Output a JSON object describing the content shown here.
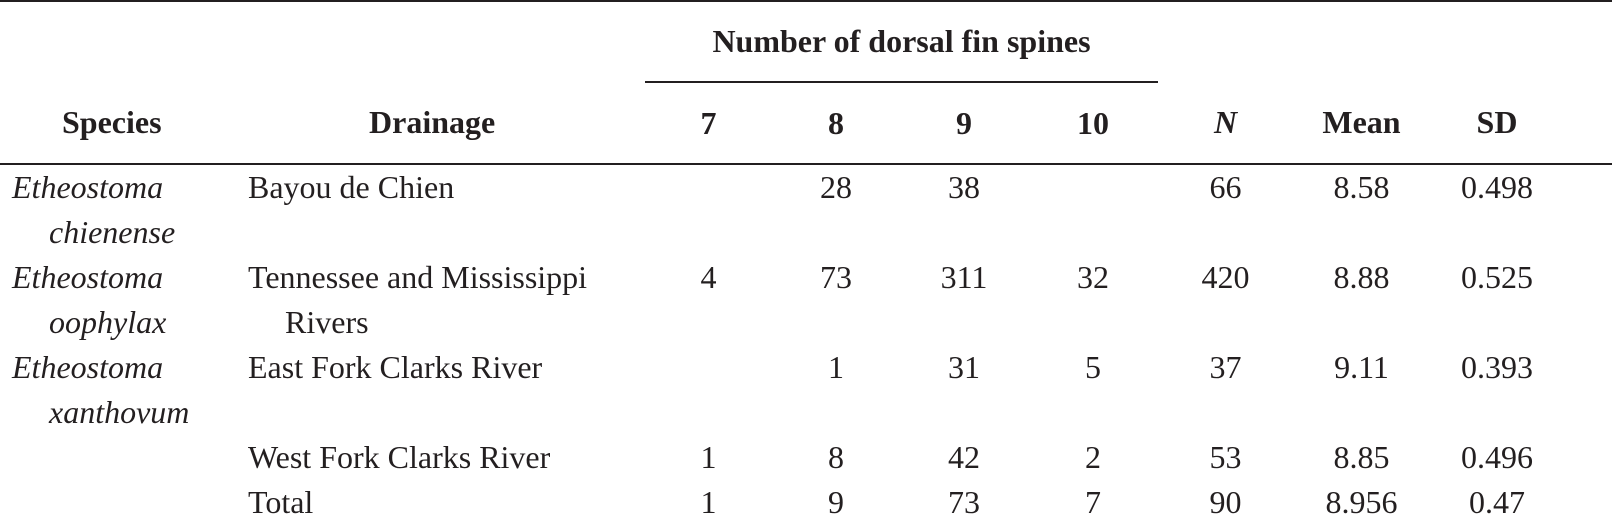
{
  "table": {
    "group_header": "Number of dorsal fin spines",
    "columns": [
      "Species",
      "Drainage",
      "7",
      "8",
      "9",
      "10",
      "N",
      "Mean",
      "SD"
    ],
    "rows": [
      [
        "Etheostoma chienense",
        "Bayou de Chien",
        null,
        28,
        38,
        null,
        66,
        8.58,
        0.498
      ],
      [
        "Etheostoma oophylax",
        "Tennessee and Mississippi Rivers",
        4,
        73,
        311,
        32,
        420,
        8.88,
        0.525
      ],
      [
        "Etheostoma xanthovum",
        "East Fork Clarks River",
        null,
        1,
        31,
        5,
        37,
        9.11,
        0.393
      ],
      [
        null,
        "West Fork Clarks River",
        1,
        8,
        42,
        2,
        53,
        8.85,
        0.496
      ],
      [
        null,
        "Total",
        1,
        9,
        73,
        7,
        90,
        8.956,
        0.47
      ]
    ]
  }
}
